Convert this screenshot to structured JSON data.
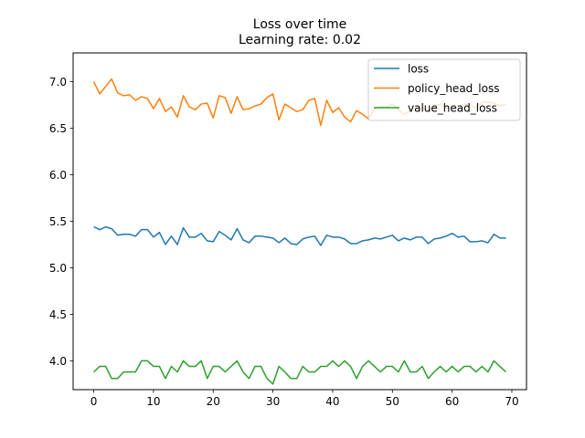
{
  "chart_data": {
    "type": "line",
    "title": "Loss over time",
    "subtitle": "Learning rate: 0.02",
    "xlabel": "",
    "ylabel": "",
    "xlim": [
      -3.45,
      72.45
    ],
    "ylim": [
      3.69,
      7.31
    ],
    "xticks": [
      0,
      10,
      20,
      30,
      40,
      50,
      60,
      70
    ],
    "xtick_labels": [
      "0",
      "10",
      "20",
      "30",
      "40",
      "50",
      "60",
      "70"
    ],
    "yticks": [
      4.0,
      4.5,
      5.0,
      5.5,
      6.0,
      6.5,
      7.0
    ],
    "ytick_labels": [
      "4.0",
      "4.5",
      "5.0",
      "5.5",
      "6.0",
      "6.5",
      "7.0"
    ],
    "grid": false,
    "legend_position": "upper right",
    "x": [
      0,
      1,
      2,
      3,
      4,
      5,
      6,
      7,
      8,
      9,
      10,
      11,
      12,
      13,
      14,
      15,
      16,
      17,
      18,
      19,
      20,
      21,
      22,
      23,
      24,
      25,
      26,
      27,
      28,
      29,
      30,
      31,
      32,
      33,
      34,
      35,
      36,
      37,
      38,
      39,
      40,
      41,
      42,
      43,
      44,
      45,
      46,
      47,
      48,
      49,
      50,
      51,
      52,
      53,
      54,
      55,
      56,
      57,
      58,
      59,
      60,
      61,
      62,
      63,
      64,
      65,
      66,
      67,
      68,
      69
    ],
    "series": [
      {
        "name": "loss",
        "color": "#1f77b4",
        "values": [
          5.44,
          5.41,
          5.44,
          5.42,
          5.35,
          5.36,
          5.36,
          5.34,
          5.41,
          5.41,
          5.33,
          5.38,
          5.25,
          5.34,
          5.25,
          5.43,
          5.33,
          5.33,
          5.37,
          5.29,
          5.28,
          5.39,
          5.35,
          5.3,
          5.42,
          5.3,
          5.27,
          5.34,
          5.34,
          5.33,
          5.32,
          5.27,
          5.32,
          5.26,
          5.25,
          5.31,
          5.33,
          5.34,
          5.24,
          5.35,
          5.33,
          5.33,
          5.31,
          5.26,
          5.26,
          5.29,
          5.3,
          5.32,
          5.31,
          5.33,
          5.35,
          5.29,
          5.32,
          5.3,
          5.33,
          5.33,
          5.26,
          5.31,
          5.32,
          5.34,
          5.37,
          5.33,
          5.34,
          5.28,
          5.28,
          5.29,
          5.27,
          5.36,
          5.32,
          5.32
        ]
      },
      {
        "name": "policy_head_loss",
        "color": "#ff7f0e",
        "values": [
          7.0,
          6.87,
          6.95,
          7.03,
          6.88,
          6.85,
          6.86,
          6.8,
          6.84,
          6.82,
          6.71,
          6.82,
          6.68,
          6.73,
          6.62,
          6.85,
          6.73,
          6.7,
          6.76,
          6.77,
          6.61,
          6.85,
          6.83,
          6.66,
          6.84,
          6.7,
          6.71,
          6.74,
          6.76,
          6.83,
          6.87,
          6.59,
          6.76,
          6.72,
          6.68,
          6.7,
          6.8,
          6.82,
          6.53,
          6.8,
          6.67,
          6.72,
          6.62,
          6.57,
          6.69,
          6.65,
          6.6,
          6.71,
          6.73,
          6.73,
          6.76,
          6.7,
          6.65,
          6.69,
          6.74,
          6.72,
          6.68,
          6.73,
          6.76,
          6.71,
          6.74,
          6.73,
          6.76,
          6.75,
          6.72,
          6.78,
          6.78,
          6.77,
          6.74,
          6.76
        ]
      },
      {
        "name": "value_head_loss",
        "color": "#2ca02c",
        "values": [
          3.88,
          3.94,
          3.94,
          3.81,
          3.81,
          3.88,
          3.88,
          3.88,
          4.0,
          4.0,
          3.94,
          3.94,
          3.81,
          3.94,
          3.88,
          4.0,
          3.94,
          3.94,
          4.0,
          3.81,
          3.94,
          3.94,
          3.88,
          3.94,
          4.0,
          3.88,
          3.81,
          3.94,
          3.94,
          3.81,
          3.75,
          3.94,
          3.88,
          3.81,
          3.81,
          3.94,
          3.88,
          3.88,
          3.94,
          3.94,
          4.0,
          3.94,
          4.0,
          3.94,
          3.81,
          3.94,
          4.0,
          3.94,
          3.88,
          3.94,
          3.94,
          3.88,
          4.0,
          3.88,
          3.88,
          3.94,
          3.81,
          3.88,
          3.94,
          3.88,
          3.94,
          3.88,
          3.94,
          3.94,
          3.88,
          3.94,
          3.88,
          4.0,
          3.94,
          3.88
        ]
      }
    ]
  }
}
